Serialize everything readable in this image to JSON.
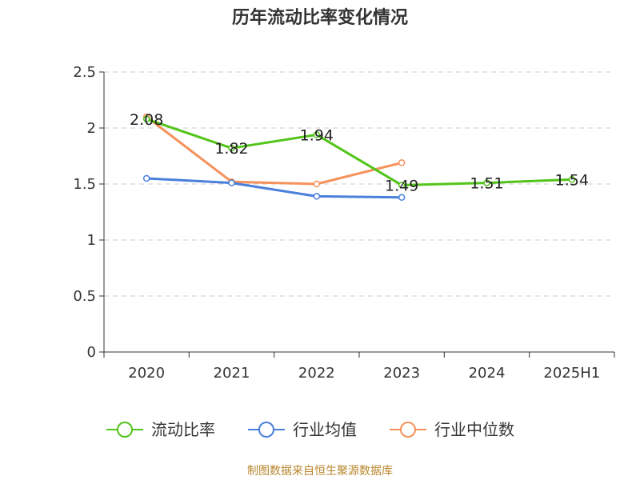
{
  "chart_data": {
    "type": "line",
    "title": "历年流动比率变化情况",
    "categories": [
      "2020",
      "2021",
      "2022",
      "2023",
      "2024",
      "2025H1"
    ],
    "ylim": [
      0,
      2.5
    ],
    "yticks": [
      "0",
      "0.5",
      "1",
      "1.5",
      "2",
      "2.5"
    ],
    "grid": true,
    "legend_position": "bottom",
    "series": [
      {
        "name": "流动比率",
        "color": "#52c41a",
        "values": [
          2.08,
          1.82,
          1.94,
          1.49,
          1.51,
          1.54
        ],
        "labels": [
          "2.08",
          "1.82",
          "1.94",
          "1.49",
          "1.51",
          "1.54"
        ]
      },
      {
        "name": "行业均值",
        "color": "#4a7fdc",
        "values": [
          1.55,
          1.51,
          1.39,
          1.38,
          null,
          null
        ]
      },
      {
        "name": "行业中位数",
        "color": "#f5915a",
        "values": [
          2.1,
          1.52,
          1.5,
          1.69,
          null,
          null
        ]
      }
    ]
  },
  "source": "制图数据来自恒生聚源数据库"
}
